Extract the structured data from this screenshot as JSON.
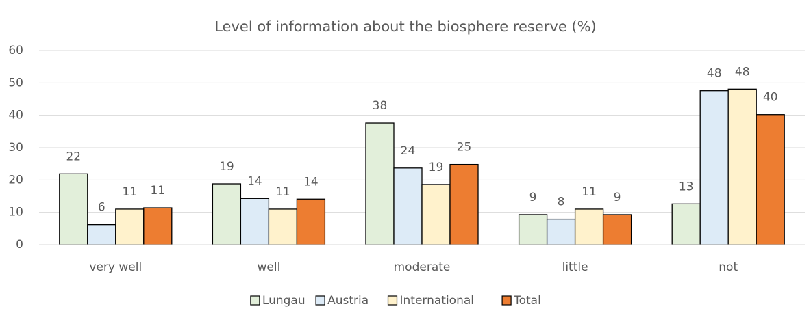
{
  "chart_data": {
    "type": "bar",
    "title": "Level of information about the biosphere reserve (%)",
    "categories": [
      "very well",
      "well",
      "moderate",
      "little",
      "not"
    ],
    "series": [
      {
        "name": "Lungau",
        "color": "#e2efda",
        "values": [
          21.9,
          18.8,
          37.6,
          9.3,
          12.6
        ],
        "value_labels": [
          "22",
          "19",
          "38",
          "9",
          "13"
        ]
      },
      {
        "name": "Austria",
        "color": "#ddebf7",
        "values": [
          6.2,
          14.3,
          23.7,
          7.9,
          47.6
        ],
        "value_labels": [
          "6",
          "14",
          "24",
          "8",
          "48"
        ]
      },
      {
        "name": "International",
        "color": "#fff2cc",
        "values": [
          11.0,
          11.0,
          18.6,
          11.0,
          48.1
        ],
        "value_labels": [
          "11",
          "11",
          "19",
          "11",
          "48"
        ]
      },
      {
        "name": "Total",
        "color": "#ed7d31",
        "values": [
          11.4,
          14.1,
          24.8,
          9.3,
          40.2
        ],
        "value_labels": [
          "11",
          "14",
          "25",
          "9",
          "40"
        ]
      }
    ],
    "ylim": [
      0,
      60
    ],
    "yticks": [
      0,
      10,
      20,
      30,
      40,
      50,
      60
    ],
    "grid": true,
    "legend": "bottom"
  }
}
